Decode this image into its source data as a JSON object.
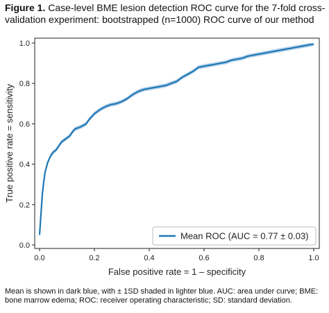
{
  "caption": {
    "label": "Figure 1.",
    "text": "Case-level BME lesion detection ROC curve for the 7-fold cross-validation experiment: bootstrapped (n=1000) ROC curve of our method"
  },
  "footnote": "Mean is shown in dark blue, with ± 1SD shaded in lighter blue. AUC: area under curve; BME: bone marrow edema; ROC: receiver operating characteristic; SD: standard deviation.",
  "colors": {
    "mean_line": "#1f77b4",
    "sd_band": "#a6c8e6"
  },
  "chart_data": {
    "type": "line",
    "title": "",
    "xlabel": "False positive rate = 1 – specificity",
    "ylabel": "True positive rate = sensitivity",
    "xlim": [
      0,
      1
    ],
    "ylim": [
      0,
      1
    ],
    "xticks": [
      "0.0",
      "0.2",
      "0.4",
      "0.6",
      "0.8",
      "1.0"
    ],
    "yticks": [
      "0.0",
      "0.2",
      "0.4",
      "0.6",
      "0.8",
      "1.0"
    ],
    "grid": false,
    "legend": {
      "placement": "bottom-right",
      "entries": [
        "Mean ROC (AUC = 0.77 ± 0.03)"
      ]
    },
    "series": [
      {
        "name": "Mean ROC (AUC = 0.77 ± 0.03)",
        "sd": 0.01,
        "x": [
          0.0,
          0.005,
          0.01,
          0.015,
          0.02,
          0.03,
          0.04,
          0.05,
          0.06,
          0.07,
          0.08,
          0.09,
          0.1,
          0.11,
          0.12,
          0.13,
          0.14,
          0.15,
          0.17,
          0.18,
          0.2,
          0.22,
          0.24,
          0.26,
          0.28,
          0.3,
          0.32,
          0.34,
          0.36,
          0.38,
          0.4,
          0.42,
          0.44,
          0.46,
          0.48,
          0.5,
          0.52,
          0.54,
          0.56,
          0.58,
          0.6,
          0.62,
          0.64,
          0.66,
          0.68,
          0.7,
          0.72,
          0.74,
          0.76,
          0.78,
          0.8,
          0.82,
          0.84,
          0.86,
          0.88,
          0.9,
          0.92,
          0.94,
          0.96,
          0.98,
          1.0
        ],
        "y": [
          0.05,
          0.15,
          0.25,
          0.31,
          0.36,
          0.41,
          0.44,
          0.46,
          0.47,
          0.49,
          0.51,
          0.52,
          0.53,
          0.54,
          0.56,
          0.575,
          0.58,
          0.585,
          0.6,
          0.62,
          0.65,
          0.67,
          0.685,
          0.695,
          0.7,
          0.71,
          0.725,
          0.745,
          0.76,
          0.77,
          0.775,
          0.78,
          0.785,
          0.79,
          0.8,
          0.81,
          0.83,
          0.845,
          0.86,
          0.88,
          0.885,
          0.89,
          0.895,
          0.9,
          0.905,
          0.915,
          0.92,
          0.925,
          0.935,
          0.94,
          0.945,
          0.95,
          0.955,
          0.96,
          0.965,
          0.97,
          0.975,
          0.98,
          0.985,
          0.99,
          0.995
        ]
      }
    ]
  }
}
